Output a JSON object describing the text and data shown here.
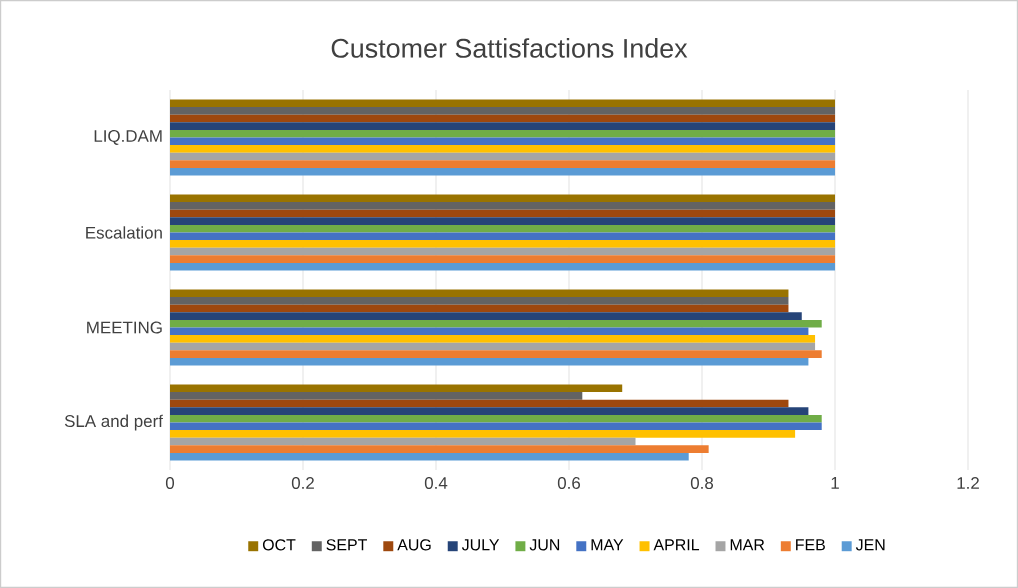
{
  "chart_data": {
    "type": "bar",
    "orientation": "horizontal",
    "title": "Customer Sattisfactions Index",
    "categories": [
      "LIQ.DAM",
      "Escalation",
      "MEETING",
      "SLA and perf"
    ],
    "series": [
      {
        "name": "OCT",
        "color": "#997300",
        "values": [
          1,
          1,
          0.93,
          0.68
        ]
      },
      {
        "name": "SEPT",
        "color": "#636363",
        "values": [
          1,
          1,
          0.93,
          0.62
        ]
      },
      {
        "name": "AUG",
        "color": "#9e480e",
        "values": [
          1,
          1,
          0.93,
          0.93
        ]
      },
      {
        "name": "JULY",
        "color": "#264478",
        "values": [
          1,
          1,
          0.95,
          0.96
        ]
      },
      {
        "name": "JUN",
        "color": "#70ad47",
        "values": [
          1,
          1,
          0.98,
          0.98
        ]
      },
      {
        "name": "MAY",
        "color": "#4472c4",
        "values": [
          1,
          1,
          0.96,
          0.98
        ]
      },
      {
        "name": "APRIL",
        "color": "#ffc000",
        "values": [
          1,
          1,
          0.97,
          0.94
        ]
      },
      {
        "name": "MAR",
        "color": "#a5a5a5",
        "values": [
          1,
          1,
          0.97,
          0.7
        ]
      },
      {
        "name": "FEB",
        "color": "#ed7d31",
        "values": [
          1,
          1,
          0.98,
          0.81
        ]
      },
      {
        "name": "JEN",
        "color": "#5b9bd5",
        "values": [
          1,
          1,
          0.96,
          0.78
        ]
      }
    ],
    "xlim": [
      0,
      1.2
    ],
    "xticks": [
      0,
      0.2,
      0.4,
      0.6,
      0.8,
      1,
      1.2
    ],
    "grid": "x",
    "legend": "bottom"
  }
}
